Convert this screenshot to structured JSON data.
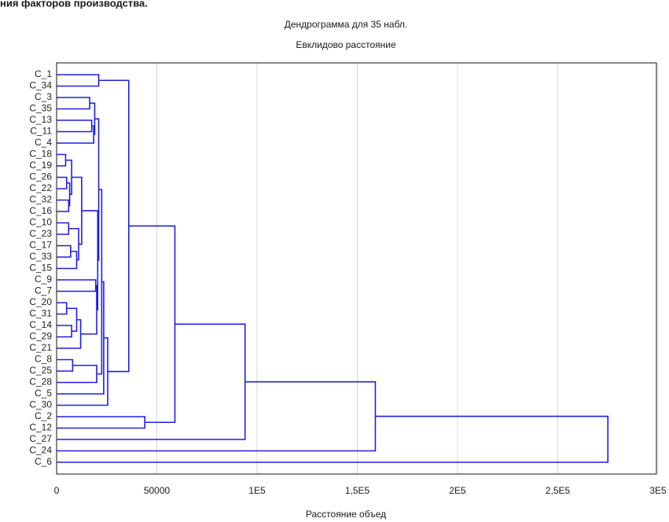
{
  "page_header": "ния факторов производства.",
  "chart_data": {
    "type": "dendrogram",
    "title": "Дендрограмма для 35 набл.",
    "subtitle": "Евклидово расстояние",
    "x_label": "Расстояние объед",
    "xlim": [
      0,
      300000
    ],
    "xticks": [
      0,
      50000,
      {
        "value": 100000,
        "label": "1E5"
      },
      {
        "value": 150000,
        "label": "1,5E5"
      },
      {
        "value": 200000,
        "label": "2E5"
      },
      {
        "value": 250000,
        "label": "2,5E5"
      },
      {
        "value": 300000,
        "label": "3E5"
      }
    ],
    "grid": true,
    "color": "#1f1fe0",
    "tree": {
      "distance": 275000,
      "children": [
        {
          "distance": 159000,
          "children": [
            {
              "distance": 94000,
              "children": [
                {
                  "distance": 59000,
                  "children": [
                    {
                      "distance": 36000,
                      "children": [
                        {
                          "distance": 21000,
                          "children": [
                            {
                              "label": "C_1"
                            },
                            {
                              "label": "C_34"
                            }
                          ]
                        },
                        {
                          "distance": 25500,
                          "children": [
                            {
                              "distance": 23500,
                              "children": [
                                {
                                  "distance": 22500,
                                  "children": [
                                    {
                                      "distance": 21000,
                                      "children": [
                                        {
                                          "distance": 19000,
                                          "children": [
                                            {
                                              "distance": 16500,
                                              "children": [
                                                {
                                                  "label": "C_3"
                                                },
                                                {
                                                  "label": "C_35"
                                                }
                                              ]
                                            },
                                            {
                                              "distance": 18500,
                                              "children": [
                                                {
                                                  "distance": 17500,
                                                  "children": [
                                                    {
                                                      "label": "C_13"
                                                    },
                                                    {
                                                      "label": "C_11"
                                                    }
                                                  ]
                                                },
                                                {
                                                  "label": "C_4"
                                                }
                                              ]
                                            }
                                          ]
                                        },
                                        {
                                          "distance": 20500,
                                          "children": [
                                            {
                                              "distance": 12500,
                                              "children": [
                                                {
                                                  "distance": 7500,
                                                  "children": [
                                                    {
                                                      "distance": 4500,
                                                      "children": [
                                                        {
                                                          "label": "C_18"
                                                        },
                                                        {
                                                          "label": "C_19"
                                                        }
                                                      ]
                                                    },
                                                    {
                                                      "distance": 6500,
                                                      "children": [
                                                        {
                                                          "distance": 5000,
                                                          "children": [
                                                            {
                                                              "label": "C_26"
                                                            },
                                                            {
                                                              "label": "C_22"
                                                            }
                                                          ]
                                                        },
                                                        {
                                                          "distance": 6000,
                                                          "children": [
                                                            {
                                                              "label": "C_32"
                                                            },
                                                            {
                                                              "label": "C_16"
                                                            }
                                                          ]
                                                        }
                                                      ]
                                                    }
                                                  ]
                                                },
                                                {
                                                  "distance": 11000,
                                                  "children": [
                                                    {
                                                      "distance": 6000,
                                                      "children": [
                                                        {
                                                          "label": "C_10"
                                                        },
                                                        {
                                                          "label": "C_23"
                                                        }
                                                      ]
                                                    },
                                                    {
                                                      "distance": 10000,
                                                      "children": [
                                                        {
                                                          "distance": 7000,
                                                          "children": [
                                                            {
                                                              "label": "C_17"
                                                            },
                                                            {
                                                              "label": "C_33"
                                                            }
                                                          ]
                                                        },
                                                        {
                                                          "label": "C_15"
                                                        }
                                                      ]
                                                    }
                                                  ]
                                                }
                                              ]
                                            },
                                            {
                                              "distance": 20000,
                                              "children": [
                                                {
                                                  "distance": 19500,
                                                  "children": [
                                                    {
                                                      "label": "C_9"
                                                    },
                                                    {
                                                      "label": "C_7"
                                                    }
                                                  ]
                                                },
                                                {
                                                  "distance": 12000,
                                                  "children": [
                                                    {
                                                      "distance": 10000,
                                                      "children": [
                                                        {
                                                          "distance": 5000,
                                                          "children": [
                                                            {
                                                              "label": "C_20"
                                                            },
                                                            {
                                                              "label": "C_31"
                                                            }
                                                          ]
                                                        },
                                                        {
                                                          "distance": 7500,
                                                          "children": [
                                                            {
                                                              "label": "C_14"
                                                            },
                                                            {
                                                              "label": "C_29"
                                                            }
                                                          ]
                                                        }
                                                      ]
                                                    },
                                                    {
                                                      "label": "C_21"
                                                    }
                                                  ]
                                                }
                                              ]
                                            }
                                          ]
                                        }
                                      ]
                                    },
                                    {
                                      "distance": 20000,
                                      "children": [
                                        {
                                          "distance": 8000,
                                          "children": [
                                            {
                                              "label": "C_8"
                                            },
                                            {
                                              "label": "C_25"
                                            }
                                          ]
                                        },
                                        {
                                          "label": "C_28"
                                        }
                                      ]
                                    }
                                  ]
                                },
                                {
                                  "label": "C_5"
                                }
                              ]
                            },
                            {
                              "label": "C_30"
                            }
                          ]
                        }
                      ]
                    },
                    {
                      "distance": 44000,
                      "children": [
                        {
                          "label": "C_2"
                        },
                        {
                          "label": "C_12"
                        }
                      ]
                    }
                  ]
                },
                {
                  "label": "C_27"
                }
              ]
            },
            {
              "label": "C_24"
            }
          ]
        },
        {
          "label": "C_6"
        }
      ]
    }
  }
}
